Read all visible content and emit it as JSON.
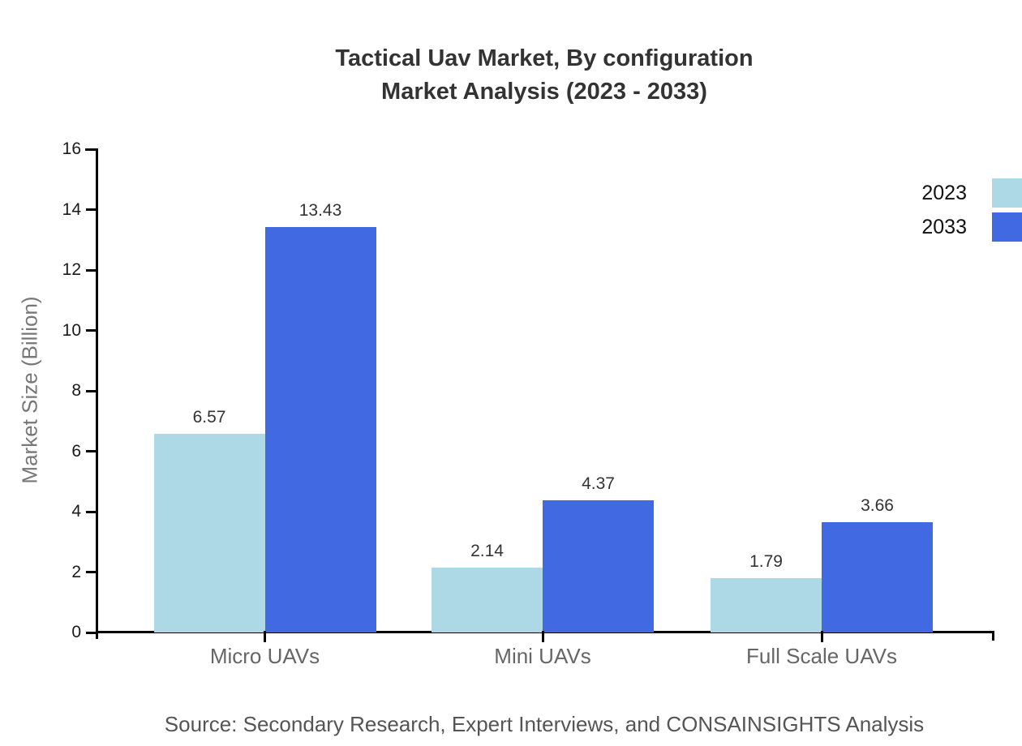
{
  "title": {
    "line1": "Tactical Uav Market, By configuration",
    "line2": "Market Analysis (2023 - 2033)"
  },
  "y_axis_title": "Market Size (Billion)",
  "source_note": "Source: Secondary Research, Expert Interviews, and CONSAINSIGHTS Analysis",
  "legend": {
    "items": [
      {
        "label": "2023",
        "color": "#ADD8E6"
      },
      {
        "label": "2033",
        "color": "#4169E1"
      }
    ]
  },
  "chart_data": {
    "type": "bar",
    "title": "Tactical Uav Market, By configuration — Market Analysis (2023 - 2033)",
    "categories": [
      "Micro UAVs",
      "Mini UAVs",
      "Full Scale UAVs"
    ],
    "series": [
      {
        "name": "2023",
        "color": "#ADD8E6",
        "values": [
          6.57,
          2.14,
          1.79
        ]
      },
      {
        "name": "2033",
        "color": "#4169E1",
        "values": [
          13.43,
          4.37,
          3.66
        ]
      }
    ],
    "xlabel": "",
    "ylabel": "Market Size (Billion)",
    "ylim": [
      0,
      16
    ],
    "ytick_step": 2,
    "grid": false,
    "legend_position": "top-right",
    "value_labels": true,
    "value_label_decimals": 2
  }
}
